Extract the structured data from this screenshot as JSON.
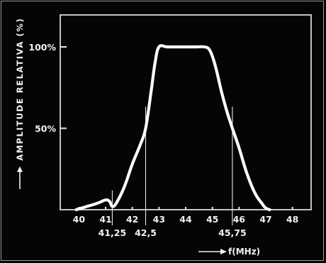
{
  "chart_data": {
    "type": "line",
    "title": "",
    "ylabel": "AMPLITUDE RELATIVA (%)",
    "xlabel": "f(MHz)",
    "xlim": [
      39.3,
      48.7
    ],
    "ylim": [
      0,
      100
    ],
    "x_ticks": [
      40,
      41,
      42,
      43,
      44,
      45,
      46,
      47,
      48
    ],
    "x_tick_labels": [
      "40",
      "41",
      "42",
      "43",
      "44",
      "45",
      "46",
      "47",
      "48"
    ],
    "y_ticks": [
      50,
      100
    ],
    "y_tick_labels": [
      "50%",
      "100%"
    ],
    "markers": [
      {
        "x": 41.25,
        "label": "41,25"
      },
      {
        "x": 42.5,
        "label": "42,5"
      },
      {
        "x": 45.75,
        "label": "45,75"
      }
    ],
    "series": [
      {
        "x": [
          39.9,
          40.3,
          40.7,
          41.0,
          41.15,
          41.25,
          41.4,
          41.7,
          42.0,
          42.3,
          42.5,
          42.7,
          42.85,
          43.0,
          43.3,
          43.6,
          44.0,
          44.4,
          44.7,
          44.9,
          45.1,
          45.35,
          45.55,
          45.75,
          46.0,
          46.3,
          46.6,
          46.85,
          47.0,
          47.15
        ],
        "y": [
          0,
          2,
          4,
          6,
          5,
          2,
          4,
          14,
          28,
          40,
          50,
          72,
          90,
          100,
          100,
          100,
          100,
          100,
          100,
          98,
          89,
          72,
          60,
          50,
          38,
          22,
          10,
          4,
          1,
          0
        ]
      }
    ]
  }
}
